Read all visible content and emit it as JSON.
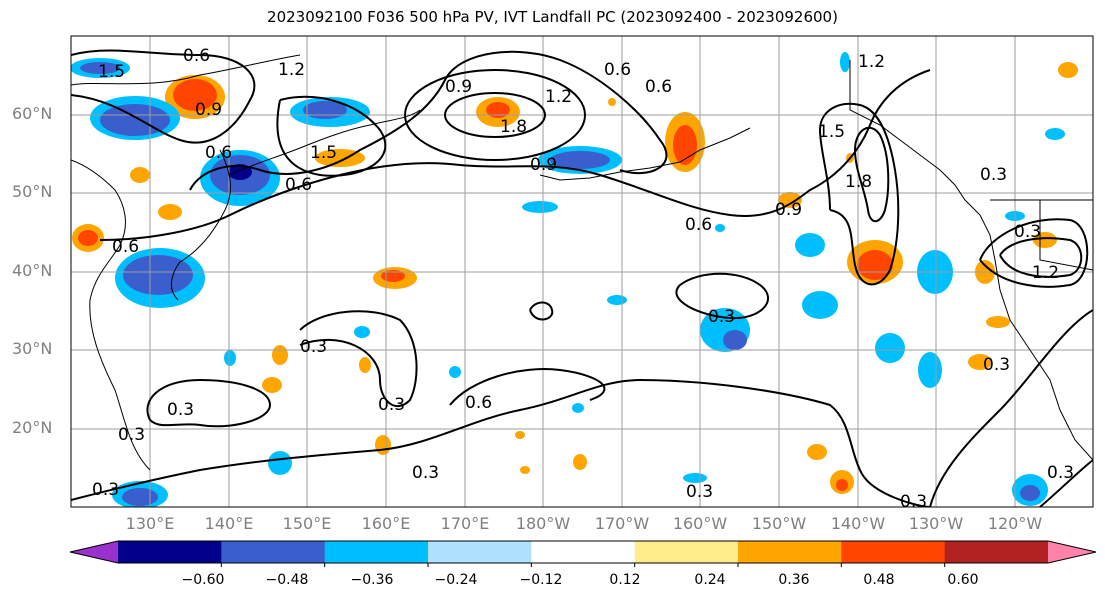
{
  "title": "2023092100 F036 500 hPa PV, IVT Landfall PC (2023092400 - 2023092600)",
  "lat_labels": [
    "60°N",
    "50°N",
    "40°N",
    "30°N",
    "20°N"
  ],
  "lon_labels": [
    "130°E",
    "140°E",
    "150°E",
    "160°E",
    "170°E",
    "180°W",
    "170°W",
    "160°W",
    "150°W",
    "140°W",
    "130°W",
    "120°W"
  ],
  "colorbar": {
    "colors": [
      "#9932cc",
      "#00008b",
      "#3a5fcd",
      "#00bfff",
      "#b0e2ff",
      "#ffffff",
      "#ffec8b",
      "#ffa500",
      "#ff4500",
      "#b22222",
      "#ff82ab"
    ],
    "ticks": [
      "−0.60",
      "−0.48",
      "−0.36",
      "−0.24",
      "−0.12",
      "0.12",
      "0.24",
      "0.36",
      "0.48",
      "0.60"
    ]
  },
  "contour_labels": [
    "0.6",
    "1.5",
    "1.2",
    "0.9",
    "0.9",
    "1.8",
    "1.2",
    "0.6",
    "0.6",
    "1.2",
    "1.5",
    "1.8",
    "0.6",
    "1.5",
    "0.6",
    "0.3",
    "0.9",
    "0.6",
    "0.6",
    "0.9",
    "1.2",
    "0.3",
    "0.3",
    "0.3",
    "0.3",
    "0.6",
    "0.3",
    "0.3",
    "0.3",
    "0.3",
    "0.3",
    "0.3",
    "0.3",
    "0.3"
  ]
}
